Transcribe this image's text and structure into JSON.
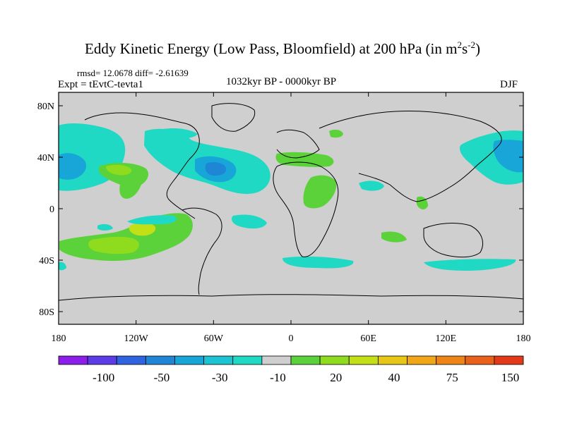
{
  "title": {
    "main": "Eddy Kinetic Energy (Low Pass, Bloomfield) at 200 hPa (in m",
    "sup1": "2",
    "mid": "s",
    "sup2": "-2",
    "end": ")"
  },
  "stats": "rmsd= 12.0678 diff= -2.61639",
  "experiment": "Expt = tEvtC-tevta1",
  "period": "1032kyr BP - 0000kyr BP",
  "season": "DJF",
  "axes": {
    "lat_labels": [
      "80N",
      "40N",
      "0",
      "40S",
      "80S"
    ],
    "lon_labels": [
      "180",
      "120W",
      "60W",
      "0",
      "60E",
      "120E",
      "180"
    ]
  },
  "colorbar": {
    "labels": [
      "-100",
      "-50",
      "-30",
      "-10",
      "20",
      "40",
      "75",
      "150"
    ],
    "colors": [
      "#8b1ee8",
      "#5b3ce6",
      "#2f63e0",
      "#1f86d6",
      "#18a5d8",
      "#1bc3d3",
      "#20d9c4",
      "#cfcfcf",
      "#5bd23a",
      "#8fdc1e",
      "#c3df16",
      "#e6c616",
      "#f0a616",
      "#ee8416",
      "#e8601a",
      "#e23a18"
    ]
  },
  "colors": {
    "land_bg": "#cfcfcf",
    "coast": "#000000"
  }
}
